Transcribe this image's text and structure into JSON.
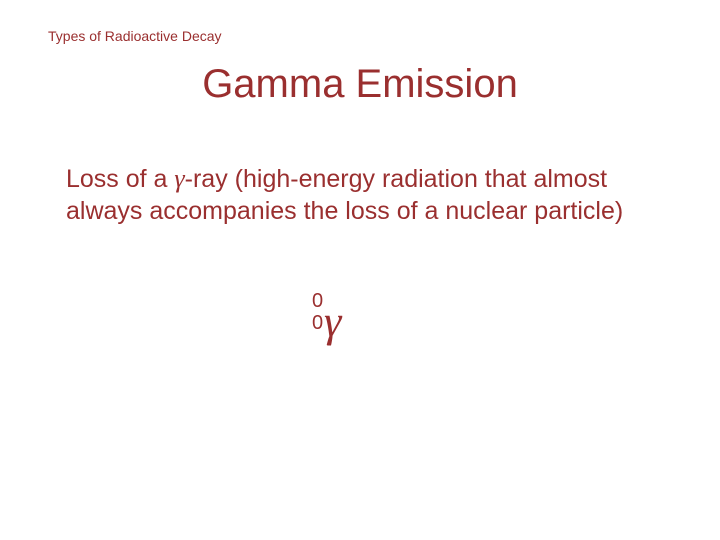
{
  "header": {
    "breadcrumb": "Types of Radioactive Decay"
  },
  "title": "Gamma Emission",
  "body": {
    "prefix": "Loss of a ",
    "gamma_symbol": "γ",
    "suffix": "-ray (high-energy radiation that almost always accompanies the loss of a nuclear particle)"
  },
  "notation": {
    "superscript": "0",
    "subscript": "0",
    "symbol": "γ"
  },
  "colors": {
    "text": "#9a2f2f",
    "background": "#ffffff"
  },
  "typography": {
    "header_fontsize": 14,
    "title_fontsize": 40,
    "body_fontsize": 25,
    "notation_small_fontsize": 20,
    "notation_symbol_fontsize": 44
  }
}
